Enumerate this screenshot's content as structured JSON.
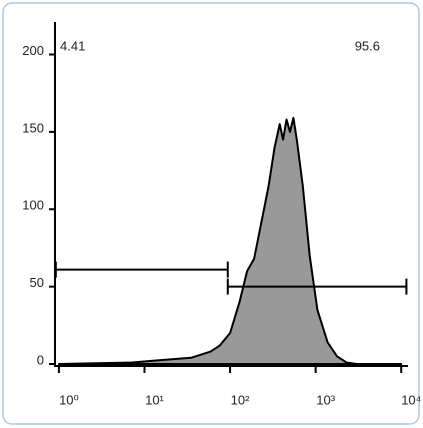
{
  "chart_data": {
    "type": "area",
    "xscale": "log",
    "x": [
      1,
      7.2,
      12,
      35,
      59,
      76,
      100,
      129,
      158,
      191,
      229,
      282,
      331,
      380,
      417,
      457,
      501,
      550,
      603,
      708,
      851,
      1047,
      1380,
      1778,
      2291,
      3020,
      10000
    ],
    "series": [
      {
        "color": "#999999",
        "values": [
          0,
          1,
          2,
          4,
          8,
          12,
          20,
          40,
          60,
          68,
          90,
          115,
          140,
          155,
          145,
          158,
          150,
          159,
          145,
          115,
          70,
          35,
          14,
          5,
          1,
          0,
          0
        ]
      }
    ],
    "xlim": [
      0.9,
      12000
    ],
    "xticks": [
      {
        "value": 1,
        "label": "10⁰"
      },
      {
        "value": 10,
        "label": "10¹"
      },
      {
        "value": 100,
        "label": "10²"
      },
      {
        "value": 1000,
        "label": "10³"
      },
      {
        "value": 10000,
        "label": "10⁴"
      }
    ],
    "ylim": [
      0,
      221
    ],
    "yticks": [
      0,
      50,
      100,
      150,
      200
    ],
    "gates": [
      {
        "x": [
          0.92,
          94
        ],
        "y": 61
      },
      {
        "x": [
          94,
          11500
        ],
        "y": 50
      }
    ],
    "annotations": [
      "4.41",
      "95.6"
    ]
  }
}
